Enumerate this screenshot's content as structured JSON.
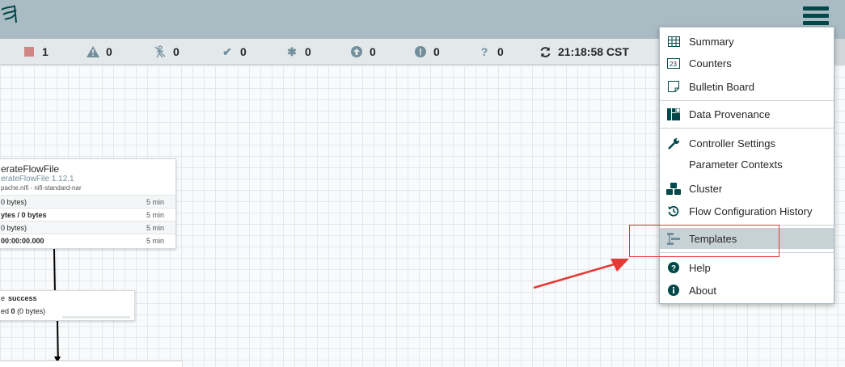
{
  "header": {
    "logo_icon": "nifi-logo-icon",
    "menu_icon": "hamburger-icon"
  },
  "status": {
    "stopped": "1",
    "invalid": "0",
    "disabled": "0",
    "up_to_date": "0",
    "locally_modified": "0",
    "stale": "0",
    "sync_failure": "0",
    "unknown": "0",
    "time": "21:18:58 CST"
  },
  "processor": {
    "name": "erateFlowFile",
    "type": "erateFlowFile 1.12.1",
    "bundle": "pache.nifi - nifi-standard-nar",
    "rows": [
      {
        "value": "0 bytes)",
        "time": "5 min"
      },
      {
        "value": "ytes / 0 bytes",
        "time": "5 min"
      },
      {
        "value": "0 bytes)",
        "time": "5 min"
      },
      {
        "value": "00:00:00.000",
        "time": "5 min"
      }
    ]
  },
  "connection": {
    "name_prefix": "e",
    "relationship": "success",
    "queued_label": "ed",
    "queued_count": "0",
    "queued_size": "(0 bytes)"
  },
  "menu": {
    "items": [
      {
        "label": "Summary",
        "icon": "table-icon"
      },
      {
        "label": "Counters",
        "icon": "counter-icon"
      },
      {
        "label": "Bulletin Board",
        "icon": "sticky-note-icon"
      },
      {
        "label": "Data Provenance",
        "icon": "provenance-icon"
      },
      {
        "label": "Controller Settings",
        "icon": "wrench-icon"
      },
      {
        "label": "Parameter Contexts",
        "icon": ""
      },
      {
        "label": "Cluster",
        "icon": "cubes-icon"
      },
      {
        "label": "Flow Configuration History",
        "icon": "history-icon"
      },
      {
        "label": "Templates",
        "icon": "template-icon"
      },
      {
        "label": "Help",
        "icon": "question-icon"
      },
      {
        "label": "About",
        "icon": "info-icon"
      }
    ]
  },
  "colors": {
    "header_bg": "#aabbc3",
    "statusbar_bg": "#e3e8eb",
    "accent": "#004849",
    "highlight": "#c7d2d7",
    "annotation": "#e53935"
  }
}
